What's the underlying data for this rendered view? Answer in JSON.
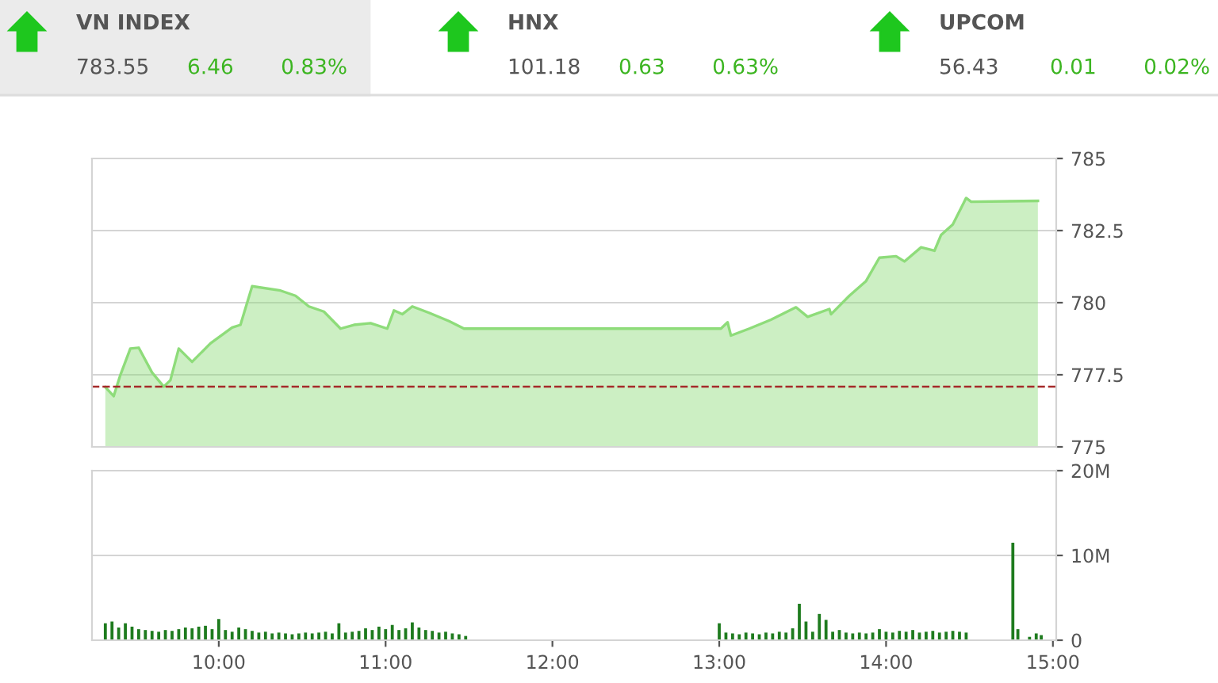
{
  "chart_data": [
    {
      "type": "other",
      "annotations": [
        "VN INDEX",
        "783.55",
        "6.46",
        "0.83%",
        "HNX",
        "101.18",
        "0.63",
        "0.63%",
        "UPCOM",
        "56.43",
        "0.01",
        "0.02%"
      ]
    },
    {
      "type": "area",
      "xlim": [
        9.24,
        15.02
      ],
      "ylim": [
        775,
        785
      ],
      "yticks": [
        775,
        777.5,
        780,
        782.5,
        785
      ],
      "grid": "y",
      "tick_labels": "y",
      "ref_lines": [
        {
          "axis": "y",
          "value": 777.09,
          "color": "#a52a2a",
          "line_style": "dashed"
        }
      ],
      "series": [
        {
          "color": "#8edc7a",
          "x": [
            9.32,
            9.37,
            9.41,
            9.47,
            9.52,
            9.6,
            9.67,
            9.71,
            9.76,
            9.84,
            9.95,
            10.08,
            10.13,
            10.2,
            10.37,
            10.46,
            10.54,
            10.63,
            10.73,
            10.81,
            10.91,
            11.01,
            11.05,
            11.1,
            11.16,
            11.26,
            11.38,
            11.47,
            13.01,
            13.05,
            13.07,
            13.18,
            13.31,
            13.46,
            13.53,
            13.66,
            13.67,
            13.78,
            13.88,
            13.96,
            14.06,
            14.11,
            14.21,
            14.29,
            14.33,
            14.4,
            14.48,
            14.51,
            14.91
          ],
          "values": [
            777.07,
            776.76,
            777.49,
            778.41,
            778.44,
            777.58,
            777.09,
            777.31,
            778.41,
            777.95,
            778.59,
            779.14,
            779.23,
            780.57,
            780.42,
            780.24,
            779.87,
            779.69,
            779.1,
            779.23,
            779.29,
            779.1,
            779.73,
            779.6,
            779.87,
            779.65,
            779.36,
            779.1,
            779.1,
            779.32,
            778.86,
            779.1,
            779.41,
            779.84,
            779.51,
            779.78,
            779.6,
            780.24,
            780.75,
            781.56,
            781.61,
            781.43,
            781.92,
            781.8,
            782.35,
            782.71,
            783.63,
            783.5,
            783.53
          ]
        }
      ]
    },
    {
      "type": "bar",
      "xlim": [
        9.24,
        15.02
      ],
      "ylim": [
        0,
        20
      ],
      "yticks": [
        0,
        {
          "value": 10,
          "label": "10M"
        },
        {
          "value": 20,
          "label": "20M"
        }
      ],
      "xticks": [
        {
          "value": 10,
          "label": "10:00"
        },
        {
          "value": 11,
          "label": "11:00"
        },
        {
          "value": 12,
          "label": "12:00"
        },
        {
          "value": 13,
          "label": "13:00"
        },
        {
          "value": 14,
          "label": "14:00"
        },
        {
          "value": 15,
          "label": "15:00"
        }
      ],
      "grid": "y",
      "series": [
        {
          "color": "#1e7b1e",
          "x": [
            9.32,
            9.36,
            9.4,
            9.44,
            9.48,
            9.52,
            9.56,
            9.6,
            9.64,
            9.68,
            9.72,
            9.76,
            9.8,
            9.84,
            9.88,
            9.92,
            9.96,
            10.0,
            10.04,
            10.08,
            10.12,
            10.16,
            10.2,
            10.24,
            10.28,
            10.32,
            10.36,
            10.4,
            10.44,
            10.48,
            10.52,
            10.56,
            10.6,
            10.64,
            10.68,
            10.72,
            10.76,
            10.8,
            10.84,
            10.88,
            10.92,
            10.96,
            11.0,
            11.04,
            11.08,
            11.12,
            11.16,
            11.2,
            11.24,
            11.28,
            11.32,
            11.36,
            11.4,
            11.44,
            11.48,
            13.0,
            13.04,
            13.08,
            13.12,
            13.16,
            13.2,
            13.24,
            13.28,
            13.32,
            13.36,
            13.4,
            13.44,
            13.48,
            13.52,
            13.56,
            13.6,
            13.64,
            13.68,
            13.72,
            13.76,
            13.8,
            13.84,
            13.88,
            13.92,
            13.96,
            14.0,
            14.04,
            14.08,
            14.12,
            14.16,
            14.2,
            14.24,
            14.28,
            14.32,
            14.36,
            14.4,
            14.44,
            14.48,
            14.76,
            14.79,
            14.86,
            14.9,
            14.93
          ],
          "values": [
            2.0,
            2.2,
            1.5,
            2.0,
            1.6,
            1.3,
            1.2,
            1.1,
            1.0,
            1.2,
            1.1,
            1.3,
            1.5,
            1.4,
            1.6,
            1.7,
            1.3,
            2.5,
            1.2,
            1.0,
            1.5,
            1.3,
            1.1,
            0.9,
            1.0,
            0.8,
            0.9,
            0.8,
            0.7,
            0.8,
            0.9,
            0.8,
            0.9,
            1.0,
            0.8,
            2.0,
            0.9,
            1.0,
            1.1,
            1.4,
            1.2,
            1.6,
            1.3,
            1.8,
            1.2,
            1.4,
            2.1,
            1.5,
            1.2,
            1.1,
            0.9,
            1.0,
            0.8,
            0.7,
            0.5,
            2.0,
            0.9,
            0.8,
            0.7,
            0.9,
            0.8,
            0.7,
            0.9,
            0.8,
            1.0,
            0.9,
            1.4,
            4.3,
            2.2,
            1.0,
            3.1,
            2.4,
            1.0,
            1.2,
            0.9,
            0.8,
            0.9,
            0.8,
            0.9,
            1.3,
            1.0,
            0.9,
            1.1,
            1.0,
            1.2,
            0.9,
            1.0,
            1.1,
            0.9,
            1.0,
            1.1,
            1.0,
            0.9,
            11.5,
            1.3,
            0.4,
            0.8,
            0.6
          ]
        }
      ]
    }
  ]
}
